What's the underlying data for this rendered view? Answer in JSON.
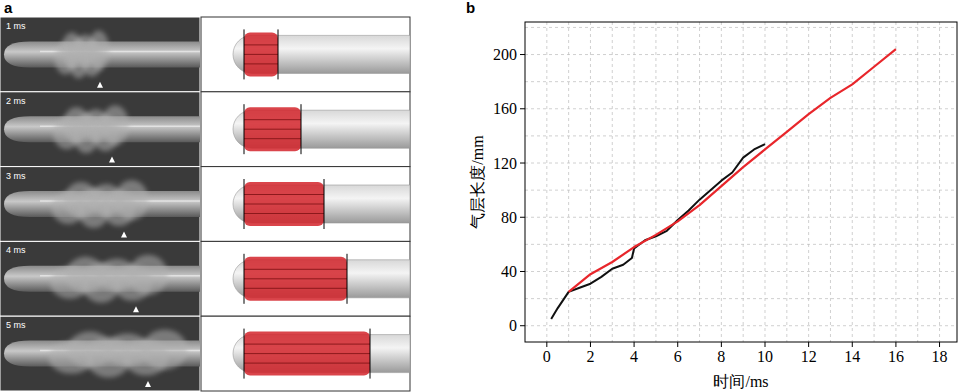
{
  "panel_labels": [
    "a",
    "b"
  ],
  "panel_a": {
    "frames": [
      "1 ms",
      "2 ms",
      "3 ms",
      "4 ms",
      "5 ms"
    ]
  },
  "chart_data": {
    "type": "line",
    "x_label": "时间/ms",
    "y_label": "气层长度/mm",
    "xlim": [
      -1,
      18.8
    ],
    "ylim": [
      -12,
      224
    ],
    "xticks": [
      0,
      2,
      4,
      6,
      8,
      10,
      12,
      14,
      16,
      18
    ],
    "yticks": [
      0,
      40,
      80,
      120,
      160,
      200
    ],
    "grid": true,
    "series": [
      {
        "color": "#111111",
        "line_style": "solid",
        "x": [
          0.2,
          0.5,
          1,
          1.5,
          2,
          2.5,
          3,
          3.5,
          3.9,
          4,
          4.5,
          5,
          5.5,
          6,
          6.5,
          7,
          7.5,
          8,
          8.5,
          9,
          9.5,
          10
        ],
        "values": [
          5,
          13,
          25,
          28,
          31,
          36,
          42,
          45,
          50,
          57,
          63,
          66,
          70,
          78,
          85,
          93,
          100,
          107,
          113,
          124,
          130,
          134
        ]
      },
      {
        "color": "#e8262b",
        "line_style": "solid",
        "x": [
          1,
          2,
          3,
          4,
          5,
          6,
          7,
          8,
          9,
          10,
          11,
          12,
          13,
          14,
          15,
          16
        ],
        "values": [
          25,
          38,
          47,
          58,
          67,
          77,
          89,
          103,
          117,
          130,
          143,
          156,
          168,
          178,
          191,
          204
        ]
      }
    ]
  }
}
